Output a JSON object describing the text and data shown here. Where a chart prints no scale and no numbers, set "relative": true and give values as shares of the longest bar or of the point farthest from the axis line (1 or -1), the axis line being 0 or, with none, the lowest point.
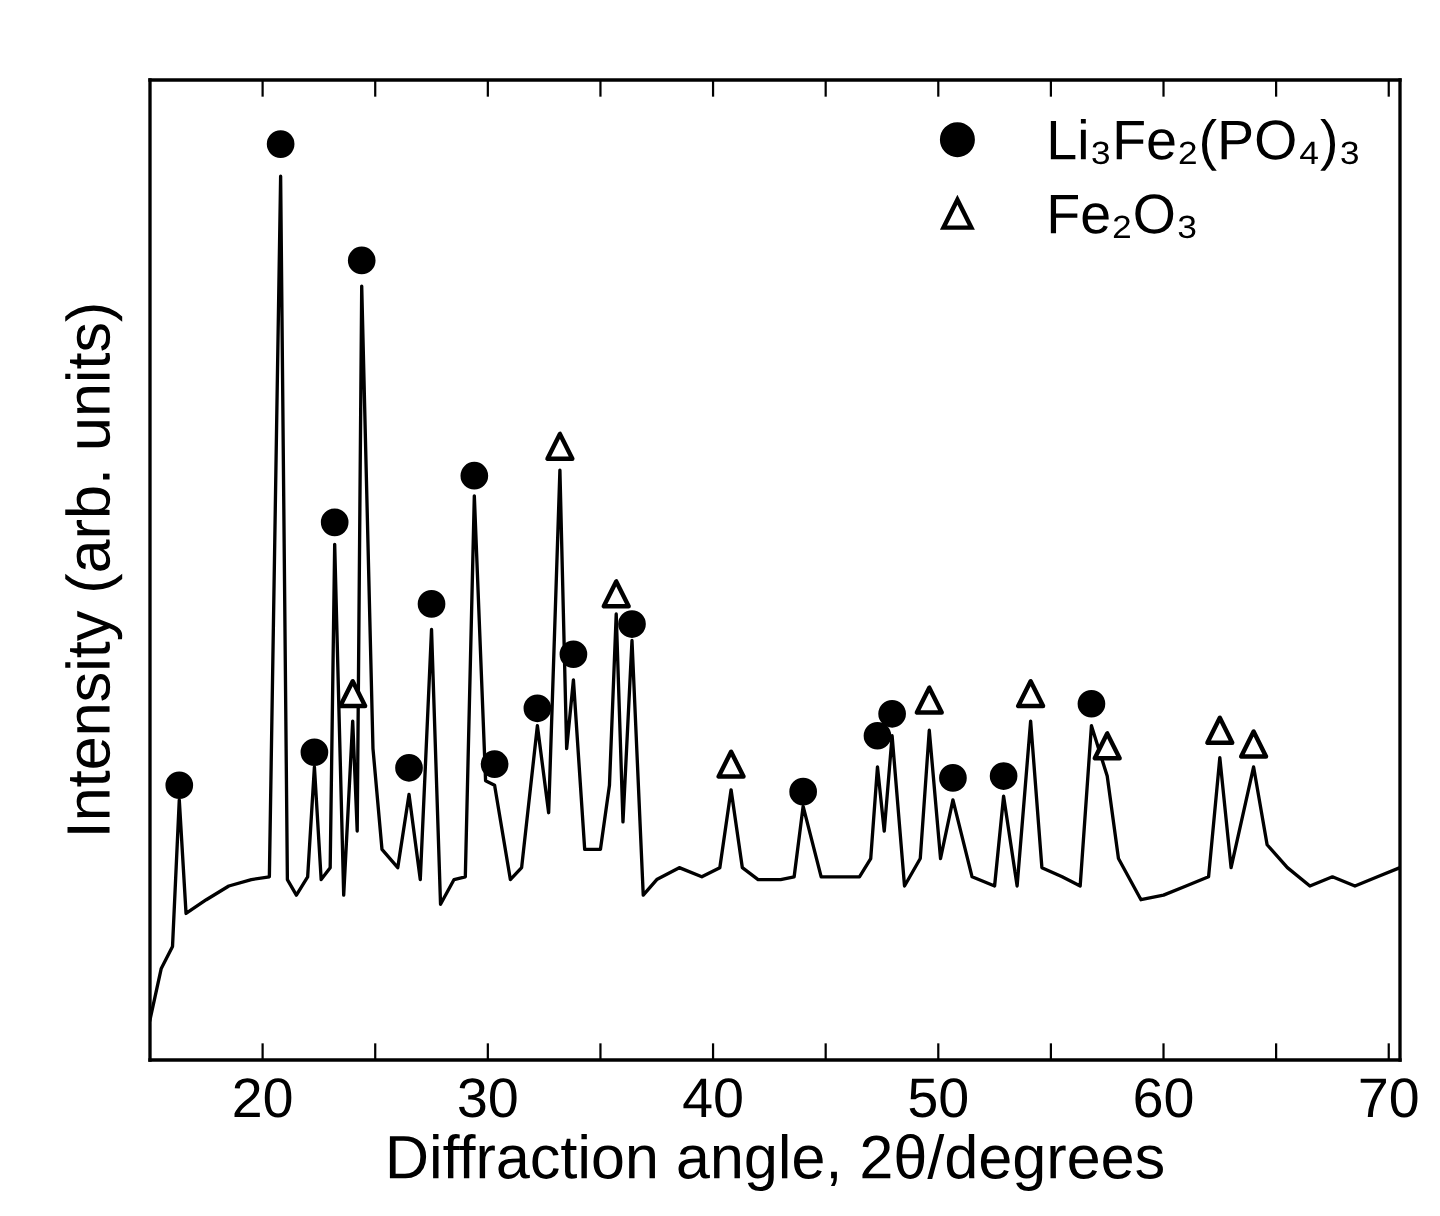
{
  "chart_data": {
    "type": "line",
    "relative": true,
    "xlabel": "Diffraction angle, 2θ/degrees",
    "ylabel": "Intensity (arb. units)",
    "xlim": [
      15,
      70.5
    ],
    "xticks": [
      20,
      {
        "value": 25,
        "label": null
      },
      30,
      {
        "value": 35,
        "label": null
      },
      40,
      {
        "value": 45,
        "label": null
      },
      50,
      {
        "value": 55,
        "label": null
      },
      60,
      {
        "value": 65,
        "label": null
      },
      70
    ],
    "grid": false,
    "legend": "top right",
    "series": [
      {
        "color": "#000000",
        "marker": "none",
        "x": [
          15.0,
          15.5,
          16.0,
          16.3,
          16.6,
          17.5,
          18.5,
          19.5,
          20.3,
          20.8,
          21.1,
          21.5,
          22.0,
          22.3,
          22.6,
          23.0,
          23.2,
          23.6,
          24.0,
          24.2,
          24.4,
          24.9,
          25.3,
          26.0,
          26.5,
          27.0,
          27.5,
          27.9,
          28.5,
          29.0,
          29.4,
          29.9,
          30.3,
          31.0,
          31.5,
          32.2,
          32.7,
          33.2,
          33.5,
          33.8,
          34.3,
          35.0,
          35.4,
          35.7,
          36.0,
          36.4,
          36.9,
          37.5,
          38.5,
          39.5,
          40.3,
          40.8,
          41.3,
          42.0,
          43.0,
          43.6,
          44.0,
          44.8,
          45.5,
          46.5,
          47.0,
          47.3,
          47.6,
          47.95,
          48.5,
          49.2,
          49.6,
          50.1,
          50.65,
          51.5,
          52.5,
          52.9,
          53.5,
          54.1,
          54.6,
          55.5,
          56.3,
          56.8,
          57.5,
          58.0,
          59.0,
          60.0,
          61.0,
          62.0,
          62.5,
          63.0,
          64.0,
          64.6,
          65.5,
          66.5,
          67.5,
          68.5,
          69.5,
          70.5
        ],
        "values": [
          0.044,
          0.1,
          0.124,
          0.284,
          0.16,
          0.175,
          0.19,
          0.197,
          0.2,
          0.965,
          0.197,
          0.18,
          0.2,
          0.32,
          0.197,
          0.21,
          0.563,
          0.18,
          0.37,
          0.25,
          0.845,
          0.34,
          0.23,
          0.21,
          0.29,
          0.197,
          0.47,
          0.17,
          0.197,
          0.2,
          0.616,
          0.305,
          0.3,
          0.197,
          0.21,
          0.365,
          0.27,
          0.644,
          0.34,
          0.415,
          0.23,
          0.23,
          0.3,
          0.487,
          0.26,
          0.458,
          0.18,
          0.197,
          0.21,
          0.2,
          0.21,
          0.295,
          0.21,
          0.197,
          0.197,
          0.2,
          0.277,
          0.2,
          0.2,
          0.2,
          0.22,
          0.32,
          0.25,
          0.354,
          0.19,
          0.22,
          0.36,
          0.22,
          0.284,
          0.2,
          0.19,
          0.288,
          0.19,
          0.37,
          0.21,
          0.2,
          0.19,
          0.365,
          0.31,
          0.22,
          0.175,
          0.18,
          0.19,
          0.2,
          0.33,
          0.21,
          0.32,
          0.235,
          0.21,
          0.19,
          0.2,
          0.19,
          0.2,
          0.21
        ]
      },
      {
        "type": "scatter",
        "name": "Li₃Fe₂(PO₄)₃",
        "color": "#000000",
        "marker": "circle",
        "x": [
          16.3,
          20.8,
          22.3,
          23.2,
          24.4,
          26.5,
          27.5,
          29.4,
          30.3,
          32.2,
          33.8,
          36.4,
          44.0,
          47.3,
          47.95,
          50.65,
          52.9,
          56.8
        ],
        "values": [
          0.3,
          1.0,
          0.336,
          0.587,
          0.873,
          0.319,
          0.498,
          0.638,
          0.323,
          0.384,
          0.443,
          0.476,
          0.293,
          0.354,
          0.378,
          0.308,
          0.31,
          0.389
        ]
      },
      {
        "type": "scatter",
        "name": "Fe₂O₃",
        "color": "#000000",
        "marker": "triangle",
        "x": [
          24.0,
          33.2,
          35.7,
          40.8,
          49.6,
          54.1,
          57.5,
          62.5,
          64.0
        ],
        "values": [
          0.4,
          0.67,
          0.509,
          0.323,
          0.393,
          0.4,
          0.343,
          0.36,
          0.345
        ]
      }
    ]
  }
}
